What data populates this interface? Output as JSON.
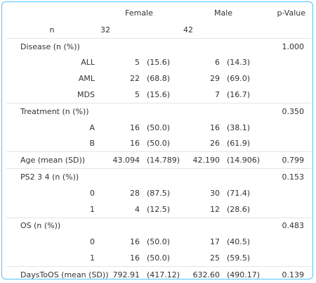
{
  "header": {
    "label": "",
    "female": "Female",
    "male": "Male",
    "p": "p-Value"
  },
  "rows": [
    {
      "type": "n",
      "label": "n",
      "f_num": "32",
      "f_pct": "",
      "m_num": "42",
      "m_pct": "",
      "p": "",
      "sep": false
    },
    {
      "type": "var",
      "label": "Disease (n (%))",
      "f_num": "",
      "f_pct": "",
      "m_num": "",
      "m_pct": "",
      "p": "1.000",
      "sep": true
    },
    {
      "type": "lvl",
      "label": "ALL",
      "f_num": "5",
      "f_pct": "(15.6)",
      "m_num": "6",
      "m_pct": "(14.3)",
      "p": "",
      "sep": false
    },
    {
      "type": "lvl",
      "label": "AML",
      "f_num": "22",
      "f_pct": "(68.8)",
      "m_num": "29",
      "m_pct": "(69.0)",
      "p": "",
      "sep": false
    },
    {
      "type": "lvl",
      "label": "MDS",
      "f_num": "5",
      "f_pct": "(15.6)",
      "m_num": "7",
      "m_pct": "(16.7)",
      "p": "",
      "sep": false
    },
    {
      "type": "var",
      "label": "Treatment (n (%))",
      "f_num": "",
      "f_pct": "",
      "m_num": "",
      "m_pct": "",
      "p": "0.350",
      "sep": true
    },
    {
      "type": "lvl",
      "label": "A",
      "f_num": "16",
      "f_pct": "(50.0)",
      "m_num": "16",
      "m_pct": "(38.1)",
      "p": "",
      "sep": false
    },
    {
      "type": "lvl",
      "label": "B",
      "f_num": "16",
      "f_pct": "(50.0)",
      "m_num": "26",
      "m_pct": "(61.9)",
      "p": "",
      "sep": false
    },
    {
      "type": "var",
      "label": "Age (mean (SD))",
      "f_num": "43.094",
      "f_pct": "(14.789)",
      "m_num": "42.190",
      "m_pct": "(14.906)",
      "p": "0.799",
      "sep": true
    },
    {
      "type": "var",
      "label": "PS2 3 4 (n (%))",
      "f_num": "",
      "f_pct": "",
      "m_num": "",
      "m_pct": "",
      "p": "0.153",
      "sep": true
    },
    {
      "type": "lvl",
      "label": "0",
      "f_num": "28",
      "f_pct": "(87.5)",
      "m_num": "30",
      "m_pct": "(71.4)",
      "p": "",
      "sep": false
    },
    {
      "type": "lvl",
      "label": "1",
      "f_num": "4",
      "f_pct": "(12.5)",
      "m_num": "12",
      "m_pct": "(28.6)",
      "p": "",
      "sep": false
    },
    {
      "type": "var",
      "label": "OS (n (%))",
      "f_num": "",
      "f_pct": "",
      "m_num": "",
      "m_pct": "",
      "p": "0.483",
      "sep": true
    },
    {
      "type": "lvl",
      "label": "0",
      "f_num": "16",
      "f_pct": "(50.0)",
      "m_num": "17",
      "m_pct": "(40.5)",
      "p": "",
      "sep": false
    },
    {
      "type": "lvl",
      "label": "1",
      "f_num": "16",
      "f_pct": "(50.0)",
      "m_num": "25",
      "m_pct": "(59.5)",
      "p": "",
      "sep": false
    },
    {
      "type": "var",
      "label": "DaysToOS (mean (SD))",
      "f_num": "792.91",
      "f_pct": "(417.12)",
      "m_num": "632.60",
      "m_pct": "(490.17)",
      "p": "0.139",
      "sep": true
    }
  ]
}
